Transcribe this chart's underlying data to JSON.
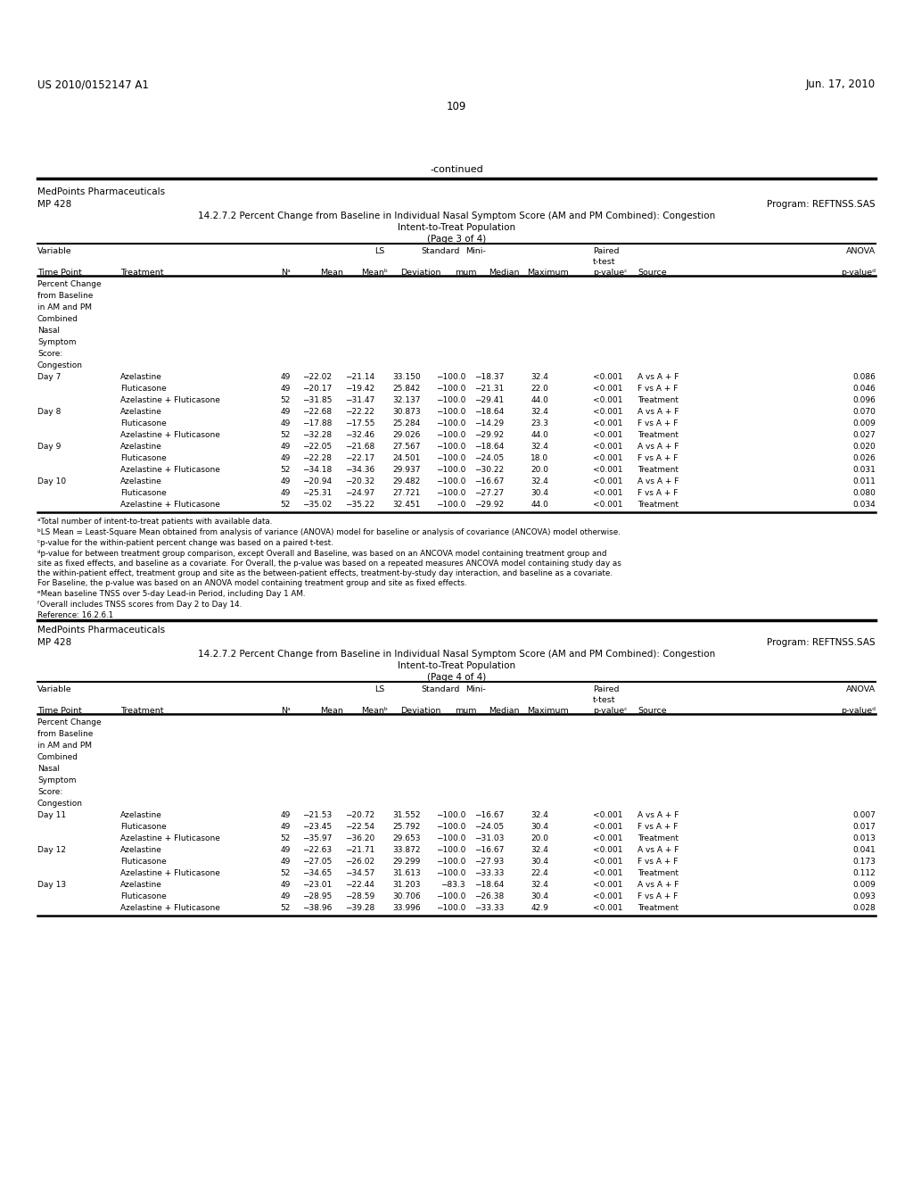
{
  "page_header_left": "US 2010/0152147 A1",
  "page_header_right": "Jun. 17, 2010",
  "page_number": "109",
  "continued_text": "-continued",
  "bg_color": "#ffffff",
  "text_color": "#000000",
  "section1": {
    "company": "MedPoints Pharmaceuticals",
    "program_id": "MP 428",
    "program_ref": "Program: REFTNSS.SAS",
    "title_line1": "14.2.7.2 Percent Change from Baseline in Individual Nasal Symptom Score (AM and PM Combined): Congestion",
    "title_line2": "Intent-to-Treat Population",
    "title_line3": "(Page 3 of 4)",
    "data_rows": [
      [
        "Percent Change",
        "",
        "",
        "",
        "",
        "",
        "",
        "",
        "",
        "",
        "",
        ""
      ],
      [
        "from Baseline",
        "",
        "",
        "",
        "",
        "",
        "",
        "",
        "",
        "",
        "",
        ""
      ],
      [
        "in AM and PM",
        "",
        "",
        "",
        "",
        "",
        "",
        "",
        "",
        "",
        "",
        ""
      ],
      [
        "Combined",
        "",
        "",
        "",
        "",
        "",
        "",
        "",
        "",
        "",
        "",
        ""
      ],
      [
        "Nasal",
        "",
        "",
        "",
        "",
        "",
        "",
        "",
        "",
        "",
        "",
        ""
      ],
      [
        "Symptom",
        "",
        "",
        "",
        "",
        "",
        "",
        "",
        "",
        "",
        "",
        ""
      ],
      [
        "Score:",
        "",
        "",
        "",
        "",
        "",
        "",
        "",
        "",
        "",
        "",
        ""
      ],
      [
        "Congestion",
        "",
        "",
        "",
        "",
        "",
        "",
        "",
        "",
        "",
        "",
        ""
      ],
      [
        "Day 7",
        "Azelastine",
        "49",
        "−22.02",
        "−21.14",
        "33.150",
        "−100.0",
        "−18.37",
        "32.4",
        "<0.001",
        "A vs A + F",
        "0.086"
      ],
      [
        "",
        "Fluticasone",
        "49",
        "−20.17",
        "−19.42",
        "25.842",
        "−100.0",
        "−21.31",
        "22.0",
        "<0.001",
        "F vs A + F",
        "0.046"
      ],
      [
        "",
        "Azelastine + Fluticasone",
        "52",
        "−31.85",
        "−31.47",
        "32.137",
        "−100.0",
        "−29.41",
        "44.0",
        "<0.001",
        "Treatment",
        "0.096"
      ],
      [
        "Day 8",
        "Azelastine",
        "49",
        "−22.68",
        "−22.22",
        "30.873",
        "−100.0",
        "−18.64",
        "32.4",
        "<0.001",
        "A vs A + F",
        "0.070"
      ],
      [
        "",
        "Fluticasone",
        "49",
        "−17.88",
        "−17.55",
        "25.284",
        "−100.0",
        "−14.29",
        "23.3",
        "<0.001",
        "F vs A + F",
        "0.009"
      ],
      [
        "",
        "Azelastine + Fluticasone",
        "52",
        "−32.28",
        "−32.46",
        "29.026",
        "−100.0",
        "−29.92",
        "44.0",
        "<0.001",
        "Treatment",
        "0.027"
      ],
      [
        "Day 9",
        "Azelastine",
        "49",
        "−22.05",
        "−21.68",
        "27.567",
        "−100.0",
        "−18.64",
        "32.4",
        "<0.001",
        "A vs A + F",
        "0.020"
      ],
      [
        "",
        "Fluticasone",
        "49",
        "−22.28",
        "−22.17",
        "24.501",
        "−100.0",
        "−24.05",
        "18.0",
        "<0.001",
        "F vs A + F",
        "0.026"
      ],
      [
        "",
        "Azelastine + Fluticasone",
        "52",
        "−34.18",
        "−34.36",
        "29.937",
        "−100.0",
        "−30.22",
        "20.0",
        "<0.001",
        "Treatment",
        "0.031"
      ],
      [
        "Day 10",
        "Azelastine",
        "49",
        "−20.94",
        "−20.32",
        "29.482",
        "−100.0",
        "−16.67",
        "32.4",
        "<0.001",
        "A vs A + F",
        "0.011"
      ],
      [
        "",
        "Fluticasone",
        "49",
        "−25.31",
        "−24.97",
        "27.721",
        "−100.0",
        "−27.27",
        "30.4",
        "<0.001",
        "F vs A + F",
        "0.080"
      ],
      [
        "",
        "Azelastine + Fluticasone",
        "52",
        "−35.02",
        "−35.22",
        "32.451",
        "−100.0",
        "−29.92",
        "44.0",
        "<0.001",
        "Treatment",
        "0.034"
      ]
    ]
  },
  "footnotes_a": "ᵃTotal number of intent-to-treat patients with available data.",
  "footnotes_b": "ᵇLS Mean = Least-Square Mean obtained from analysis of variance (ANOVA) model for baseline or analysis of covariance (ANCOVA) model otherwise.",
  "footnotes_c": "ᶜp-value for the within-patient percent change was based on a paired t-test.",
  "footnotes_d1": "ᵈp-value for between treatment group comparison, except Overall and Baseline, was based on an ANCOVA model containing treatment group and",
  "footnotes_d2": "site as fixed effects, and baseline as a covariate. For Overall, the p-value was based on a repeated measures ANCOVA model containing study day as",
  "footnotes_d3": "the within-patient effect, treatment group and site as the between-patient effects, treatment-by-study day interaction, and baseline as a covariate.",
  "footnotes_d4": "For Baseline, the p-value was based on an ANOVA model containing treatment group and site as fixed effects.",
  "footnotes_e": "ᵉMean baseline TNSS over 5-day Lead-in Period, including Day 1 AM.",
  "footnotes_f": "ᶠOverall includes TNSS scores from Day 2 to Day 14.",
  "footnotes_ref": "Reference: 16.2.6.1",
  "section2": {
    "company": "MedPoints Pharmaceuticals",
    "program_id": "MP 428",
    "program_ref": "Program: REFTNSS.SAS",
    "title_line1": "14.2.7.2 Percent Change from Baseline in Individual Nasal Symptom Score (AM and PM Combined): Congestion",
    "title_line2": "Intent-to-Treat Population",
    "title_line3": "(Page 4 of 4)",
    "data_rows": [
      [
        "Percent Change",
        "",
        "",
        "",
        "",
        "",
        "",
        "",
        "",
        "",
        "",
        ""
      ],
      [
        "from Baseline",
        "",
        "",
        "",
        "",
        "",
        "",
        "",
        "",
        "",
        "",
        ""
      ],
      [
        "in AM and PM",
        "",
        "",
        "",
        "",
        "",
        "",
        "",
        "",
        "",
        "",
        ""
      ],
      [
        "Combined",
        "",
        "",
        "",
        "",
        "",
        "",
        "",
        "",
        "",
        "",
        ""
      ],
      [
        "Nasal",
        "",
        "",
        "",
        "",
        "",
        "",
        "",
        "",
        "",
        "",
        ""
      ],
      [
        "Symptom",
        "",
        "",
        "",
        "",
        "",
        "",
        "",
        "",
        "",
        "",
        ""
      ],
      [
        "Score:",
        "",
        "",
        "",
        "",
        "",
        "",
        "",
        "",
        "",
        "",
        ""
      ],
      [
        "Congestion",
        "",
        "",
        "",
        "",
        "",
        "",
        "",
        "",
        "",
        "",
        ""
      ],
      [
        "Day 11",
        "Azelastine",
        "49",
        "−21.53",
        "−20.72",
        "31.552",
        "−100.0",
        "−16.67",
        "32.4",
        "<0.001",
        "A vs A + F",
        "0.007"
      ],
      [
        "",
        "Fluticasone",
        "49",
        "−23.45",
        "−22.54",
        "25.792",
        "−100.0",
        "−24.05",
        "30.4",
        "<0.001",
        "F vs A + F",
        "0.017"
      ],
      [
        "",
        "Azelastine + Fluticasone",
        "52",
        "−35.97",
        "−36.20",
        "29.653",
        "−100.0",
        "−31.03",
        "20.0",
        "<0.001",
        "Treatment",
        "0.013"
      ],
      [
        "Day 12",
        "Azelastine",
        "49",
        "−22.63",
        "−21.71",
        "33.872",
        "−100.0",
        "−16.67",
        "32.4",
        "<0.001",
        "A vs A + F",
        "0.041"
      ],
      [
        "",
        "Fluticasone",
        "49",
        "−27.05",
        "−26.02",
        "29.299",
        "−100.0",
        "−27.93",
        "30.4",
        "<0.001",
        "F vs A + F",
        "0.173"
      ],
      [
        "",
        "Azelastine + Fluticasone",
        "52",
        "−34.65",
        "−34.57",
        "31.613",
        "−100.0",
        "−33.33",
        "22.4",
        "<0.001",
        "Treatment",
        "0.112"
      ],
      [
        "Day 13",
        "Azelastine",
        "49",
        "−23.01",
        "−22.44",
        "31.203",
        "−83.3",
        "−18.64",
        "32.4",
        "<0.001",
        "A vs A + F",
        "0.009"
      ],
      [
        "",
        "Fluticasone",
        "49",
        "−28.95",
        "−28.59",
        "30.706",
        "−100.0",
        "−26.38",
        "30.4",
        "<0.001",
        "F vs A + F",
        "0.093"
      ],
      [
        "",
        "Azelastine + Fluticasone",
        "52",
        "−38.96",
        "−39.28",
        "33.996",
        "−100.0",
        "−33.33",
        "42.9",
        "<0.001",
        "Treatment",
        "0.028"
      ]
    ]
  }
}
